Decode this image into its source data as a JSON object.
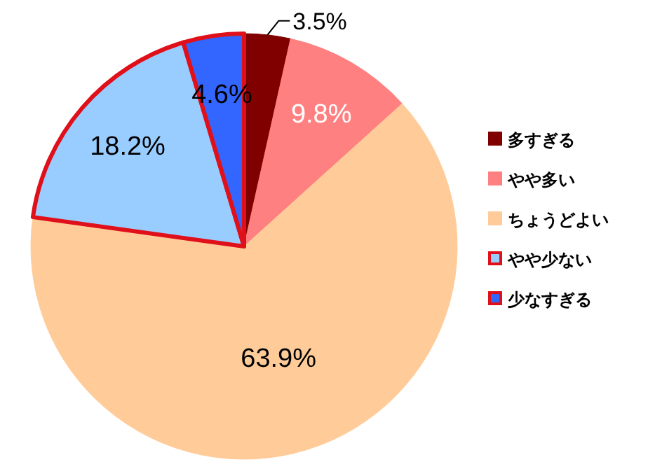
{
  "chart_data": {
    "type": "pie",
    "categories": [
      "多すぎる",
      "やや多い",
      "ちょうどよい",
      "やや少ない",
      "少なすぎる"
    ],
    "values": [
      3.5,
      9.8,
      63.9,
      18.2,
      4.6
    ],
    "value_labels": [
      "3.5%",
      "9.8%",
      "63.9%",
      "18.2%",
      "4.6%"
    ],
    "colors": [
      "#800000",
      "#ff8080",
      "#ffcc99",
      "#99ccff",
      "#3366ff"
    ],
    "legend": "right"
  }
}
